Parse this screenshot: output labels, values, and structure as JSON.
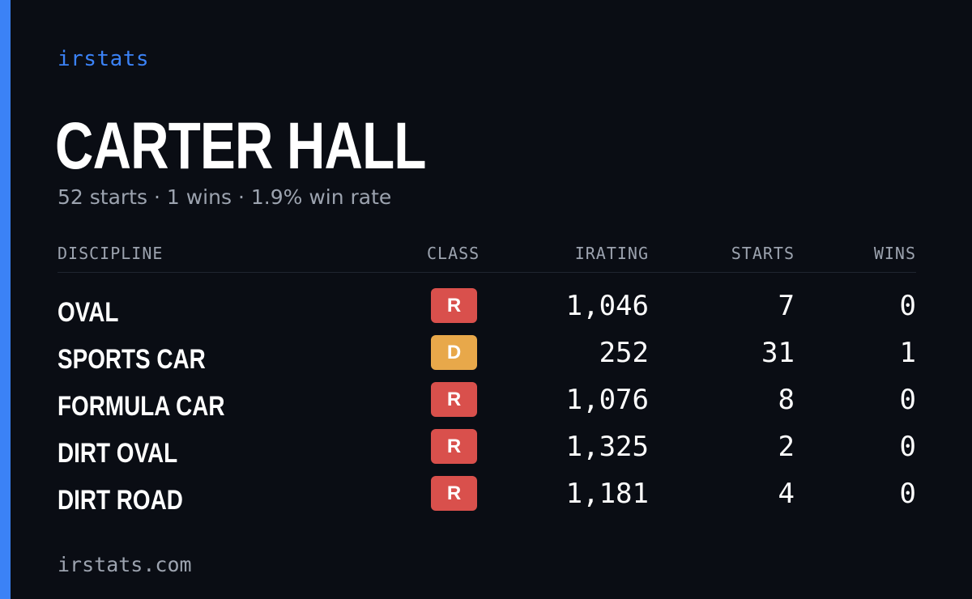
{
  "brand": "irstats",
  "driver_name": "CARTER HALL",
  "summary": {
    "starts": "52 starts",
    "wins": "1 wins",
    "win_rate": "1.9% win rate",
    "separator": "·"
  },
  "table": {
    "headers": {
      "discipline": "DISCIPLINE",
      "class": "CLASS",
      "irating": "IRATING",
      "starts": "STARTS",
      "wins": "WINS"
    },
    "rows": [
      {
        "discipline": "OVAL",
        "class": "R",
        "class_color": "#d9504c",
        "irating": "1,046",
        "starts": "7",
        "wins": "0"
      },
      {
        "discipline": "SPORTS CAR",
        "class": "D",
        "class_color": "#e8a84a",
        "irating": "252",
        "starts": "31",
        "wins": "1"
      },
      {
        "discipline": "FORMULA CAR",
        "class": "R",
        "class_color": "#d9504c",
        "irating": "1,076",
        "starts": "8",
        "wins": "0"
      },
      {
        "discipline": "DIRT OVAL",
        "class": "R",
        "class_color": "#d9504c",
        "irating": "1,325",
        "starts": "2",
        "wins": "0"
      },
      {
        "discipline": "DIRT ROAD",
        "class": "R",
        "class_color": "#d9504c",
        "irating": "1,181",
        "starts": "4",
        "wins": "0"
      }
    ]
  },
  "footer": {
    "url": "irstats.com"
  },
  "colors": {
    "accent": "#3b82f6",
    "background": "#0a0d14",
    "muted_text": "#9ca3af",
    "class_r": "#d9504c",
    "class_d": "#e8a84a"
  }
}
